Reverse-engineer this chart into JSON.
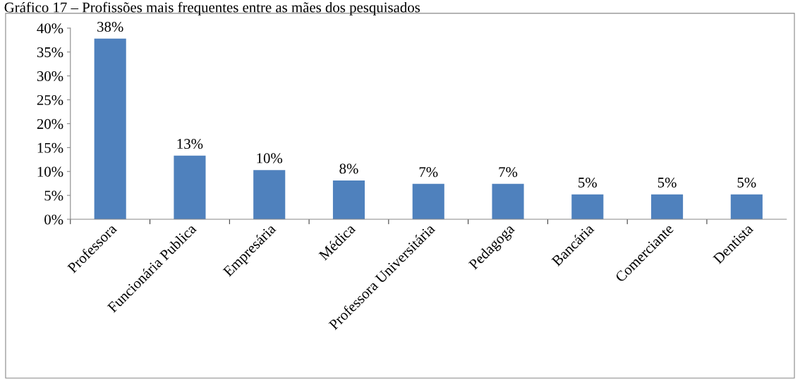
{
  "chart_data": {
    "type": "bar",
    "title": "Gráfico 17 – Profissões mais frequentes entre as mães dos pesquisados",
    "categories": [
      "Professora",
      "Funcionária Publica",
      "Empresária",
      "Médica",
      "Professora Universitária",
      "Pedagoga",
      "Bancária",
      "Comerciante",
      "Dentista"
    ],
    "values": [
      37.8,
      13.3,
      10.3,
      8.1,
      7.4,
      7.4,
      5.2,
      5.2,
      5.2
    ],
    "value_labels": [
      "38%",
      "13%",
      "10%",
      "8%",
      "7%",
      "7%",
      "5%",
      "5%",
      "5%"
    ],
    "color": "#4f81bd",
    "ylim": [
      0,
      40
    ],
    "yticks": [
      {
        "value": 0,
        "label": "0%"
      },
      {
        "value": 5,
        "label": "5%"
      },
      {
        "value": 10,
        "label": "10%"
      },
      {
        "value": 15,
        "label": "15%"
      },
      {
        "value": 20,
        "label": "20%"
      },
      {
        "value": 25,
        "label": "25%"
      },
      {
        "value": 30,
        "label": "30%"
      },
      {
        "value": 35,
        "label": "35%"
      },
      {
        "value": 40,
        "label": "40%"
      }
    ],
    "grid": false,
    "legend": false
  }
}
